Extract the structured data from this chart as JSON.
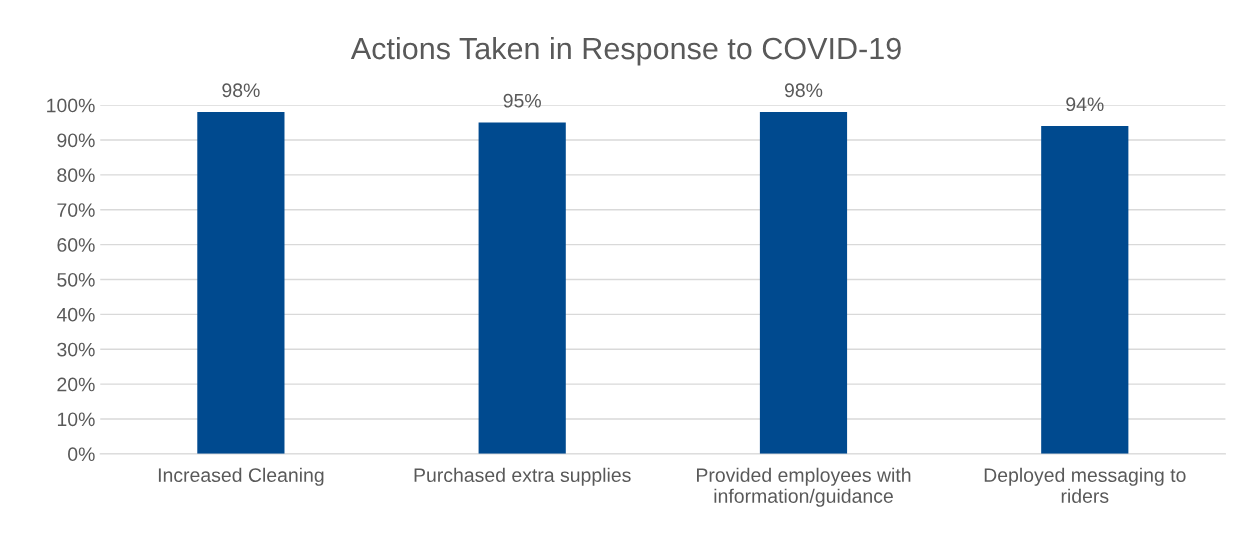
{
  "chart_data": {
    "type": "bar",
    "title": "Actions Taken in Response to COVID-19",
    "categories": [
      "Increased Cleaning",
      "Purchased extra supplies",
      "Provided employees with\ninformation/guidance",
      "Deployed messaging to\nriders"
    ],
    "series": [
      {
        "color": "#004a8f",
        "values": [
          98,
          95,
          98,
          94
        ],
        "value_labels": [
          "98%",
          "95%",
          "98%",
          "94%"
        ]
      }
    ],
    "ylim": [
      0,
      100
    ],
    "yticks": [
      {
        "value": 0,
        "label": "0%"
      },
      {
        "value": 10,
        "label": "10%"
      },
      {
        "value": 20,
        "label": "20%"
      },
      {
        "value": 30,
        "label": "30%"
      },
      {
        "value": 40,
        "label": "40%"
      },
      {
        "value": 50,
        "label": "50%"
      },
      {
        "value": 60,
        "label": "60%"
      },
      {
        "value": 70,
        "label": "70%"
      },
      {
        "value": 80,
        "label": "80%"
      },
      {
        "value": 90,
        "label": "90%"
      },
      {
        "value": 100,
        "label": "100%"
      }
    ],
    "grid": "y",
    "legend": false
  }
}
